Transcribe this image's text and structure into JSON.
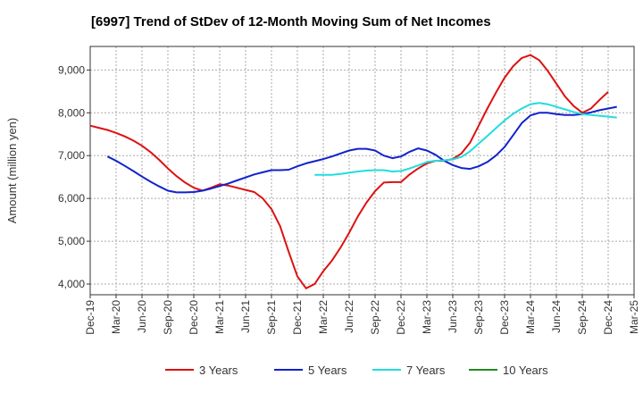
{
  "chart_data": {
    "type": "line",
    "title": "[6997]  Trend of StDev of 12-Month Moving Sum of Net Incomes",
    "ylabel": "Amount (million yen)",
    "xlabel": "",
    "ylim": [
      3750,
      9550
    ],
    "y_ticks": [
      4000,
      5000,
      6000,
      7000,
      8000,
      9000
    ],
    "y_tick_labels": [
      "4,000",
      "5,000",
      "6,000",
      "7,000",
      "8,000",
      "9,000"
    ],
    "x_range": [
      "2019-12",
      "2025-03"
    ],
    "x_ticks": [
      "2019-12",
      "2020-03",
      "2020-06",
      "2020-09",
      "2020-12",
      "2021-03",
      "2021-06",
      "2021-09",
      "2021-12",
      "2022-03",
      "2022-06",
      "2022-09",
      "2022-12",
      "2023-03",
      "2023-06",
      "2023-09",
      "2023-12",
      "2024-03",
      "2024-06",
      "2024-09",
      "2024-12",
      "2025-03"
    ],
    "x_tick_labels": [
      "Dec-19",
      "Mar-20",
      "Jun-20",
      "Sep-20",
      "Dec-20",
      "Mar-21",
      "Jun-21",
      "Sep-21",
      "Dec-21",
      "Mar-22",
      "Jun-22",
      "Sep-22",
      "Dec-22",
      "Mar-23",
      "Jun-23",
      "Sep-23",
      "Dec-23",
      "Mar-24",
      "Jun-24",
      "Sep-24",
      "Dec-24",
      "Mar-25"
    ],
    "grid": true,
    "legend_position": "bottom",
    "series": [
      {
        "name": "3 Years",
        "color": "#dd1111",
        "start": "2019-12",
        "values": [
          7700,
          7650,
          7600,
          7530,
          7450,
          7350,
          7230,
          7080,
          6900,
          6700,
          6520,
          6370,
          6250,
          6180,
          6250,
          6330,
          6300,
          6250,
          6200,
          6150,
          6000,
          5750,
          5350,
          4750,
          4180,
          3900,
          4000,
          4300,
          4550,
          4850,
          5200,
          5580,
          5900,
          6170,
          6370,
          6380,
          6380,
          6560,
          6700,
          6820,
          6880,
          6880,
          6920,
          7050,
          7300,
          7700,
          8100,
          8470,
          8820,
          9090,
          9280,
          9350,
          9230,
          8980,
          8680,
          8380,
          8160,
          8000,
          8100,
          8300,
          8490
        ]
      },
      {
        "name": "5 Years",
        "color": "#1122cc",
        "start": "2020-02",
        "values": [
          6980,
          6880,
          6760,
          6640,
          6510,
          6390,
          6280,
          6180,
          6140,
          6140,
          6150,
          6180,
          6230,
          6290,
          6350,
          6420,
          6490,
          6560,
          6610,
          6660,
          6660,
          6670,
          6750,
          6820,
          6870,
          6920,
          6980,
          7050,
          7120,
          7160,
          7160,
          7120,
          7000,
          6940,
          6980,
          7090,
          7170,
          7120,
          7020,
          6880,
          6780,
          6710,
          6690,
          6750,
          6850,
          7000,
          7200,
          7480,
          7760,
          7940,
          8000,
          8000,
          7970,
          7950,
          7950,
          7970,
          8010,
          8060,
          8100,
          8140
        ]
      },
      {
        "name": "7 Years",
        "color": "#22dddd",
        "start": "2022-02",
        "values": [
          6550,
          6550,
          6550,
          6570,
          6600,
          6630,
          6650,
          6660,
          6660,
          6630,
          6640,
          6700,
          6770,
          6850,
          6880,
          6890,
          6910,
          6970,
          7100,
          7280,
          7460,
          7640,
          7820,
          7980,
          8100,
          8200,
          8230,
          8200,
          8140,
          8080,
          8020,
          7970,
          7950,
          7930,
          7910,
          7890
        ]
      },
      {
        "name": "10 Years",
        "color": "#228822",
        "start": null,
        "values": []
      }
    ]
  }
}
